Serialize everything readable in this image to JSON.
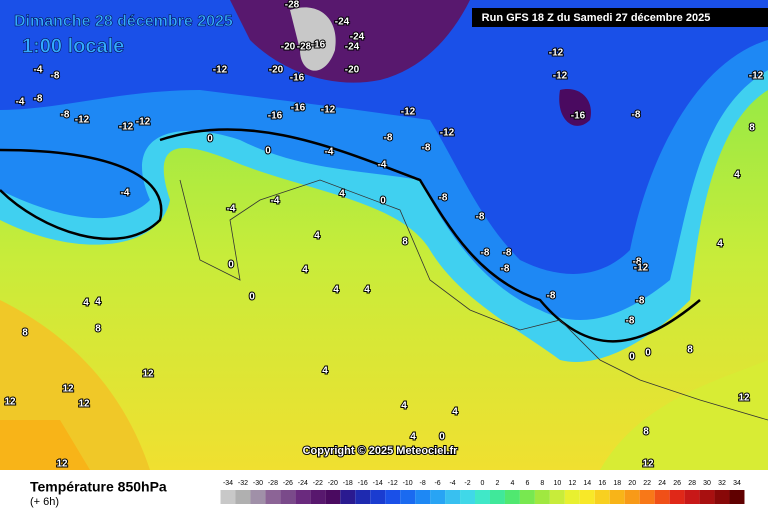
{
  "header": {
    "date": "Dimanche 28 décembre 2025",
    "time": "1:00 locale",
    "run": "Run GFS 18 Z du Samedi 27 décembre 2025"
  },
  "copyright": "Copyright © 2025 Meteociel.fr",
  "footer": {
    "title": "Température 850hPa",
    "subtitle": "(+ 6h)"
  },
  "legend": {
    "ticks": [
      -34,
      -32,
      -30,
      -28,
      -26,
      -24,
      -22,
      -20,
      -18,
      -16,
      -14,
      -12,
      -10,
      -8,
      -6,
      -4,
      -2,
      0,
      2,
      4,
      6,
      8,
      10,
      12,
      14,
      16,
      18,
      20,
      22,
      24,
      26,
      28,
      30,
      32,
      34
    ],
    "colors": [
      "#c8c8c8",
      "#b0b0b0",
      "#a090a8",
      "#8c6496",
      "#7a4a8a",
      "#6a2a7e",
      "#58186e",
      "#4a0a60",
      "#2a1a90",
      "#1e2ab0",
      "#1a3cd0",
      "#1a50e8",
      "#1a6af0",
      "#1e88f4",
      "#28a4f4",
      "#38c0f0",
      "#40d8e8",
      "#40e8c8",
      "#40e89a",
      "#50e870",
      "#78e850",
      "#a0e840",
      "#c8ec3a",
      "#e8f030",
      "#f8e828",
      "#f8d020",
      "#f8b418",
      "#f89a18",
      "#f87818",
      "#f05018",
      "#e02818",
      "#c81818",
      "#a81010",
      "#880808",
      "#600000"
    ]
  },
  "map_labels": [
    -28,
    -24,
    -24,
    -24,
    -20,
    -28,
    -16,
    -20,
    -20,
    -16,
    -12,
    -12,
    -8,
    -4,
    -8,
    -4,
    -8,
    -12,
    -12,
    -12,
    -16,
    -16,
    -12,
    -12,
    -12,
    -16,
    -8,
    -8,
    -8,
    -4,
    0,
    0,
    -4,
    -4,
    -4,
    -4,
    0,
    -8,
    -8,
    -8,
    -8,
    -8,
    -8,
    4,
    4,
    4,
    0,
    0,
    8,
    4,
    4,
    4,
    4,
    8,
    8,
    12,
    12,
    12,
    12,
    12,
    4,
    4,
    4,
    0,
    4,
    8,
    12,
    12,
    8,
    0,
    0,
    -8,
    -8,
    -8,
    -12,
    4,
    4,
    8,
    -12,
    -12
  ]
}
